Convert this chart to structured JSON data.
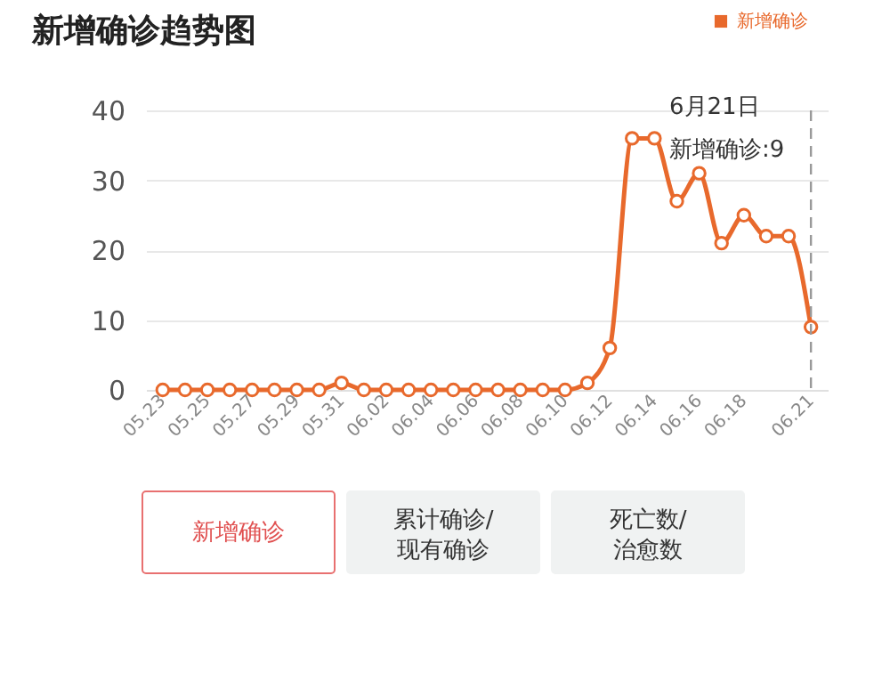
{
  "chart_data": {
    "type": "line",
    "title": "新增确诊趋势图",
    "categories": [
      "05.23",
      null,
      "05.25",
      null,
      "05.27",
      null,
      "05.29",
      null,
      "05.31",
      null,
      "06.02",
      null,
      "06.04",
      null,
      "06.06",
      null,
      "06.08",
      null,
      "06.10",
      null,
      "06.12",
      null,
      "06.14",
      null,
      "06.16",
      null,
      "06.18",
      null,
      null,
      "06.21"
    ],
    "series": [
      {
        "name": "新增确诊",
        "color": "#e8692c",
        "values": [
          0,
          0,
          0,
          0,
          0,
          0,
          0,
          0,
          1,
          0,
          0,
          0,
          0,
          0,
          0,
          0,
          0,
          0,
          0,
          1,
          6,
          36,
          36,
          27,
          31,
          21,
          25,
          22,
          22,
          9
        ]
      }
    ],
    "ylim": [
      0,
      40
    ],
    "yticks": [
      0,
      10,
      20,
      30,
      40
    ],
    "grid": "y",
    "legend": "top right",
    "marker": "circle",
    "line_style": "solid",
    "ref_lines": [
      {
        "axis": "x",
        "value": "06.21",
        "color": "#999999",
        "line_style": "dashed"
      }
    ],
    "annotations": [
      "6月21日",
      "新增确诊:9",
      "新增确诊",
      "累计确诊/\n现有确诊",
      "死亡数/\n治愈数"
    ]
  }
}
